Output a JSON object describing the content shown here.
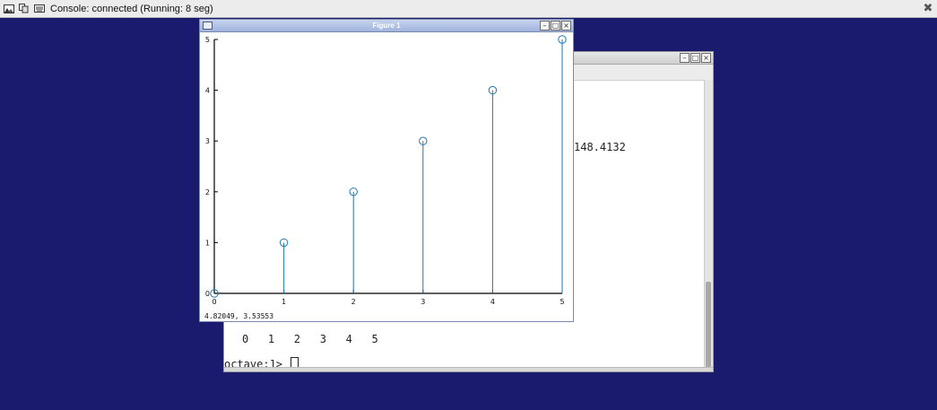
{
  "console": {
    "title": "Console: connected (Running: 8 seg)",
    "icons": [
      "picture-icon",
      "copy-icon",
      "keyboard-icon"
    ],
    "close_icon": "close-icon"
  },
  "terminal": {
    "output_value": "148.4132",
    "output_row": "0   1   2   3   4   5",
    "prompt": "octave:1> "
  },
  "figure": {
    "title": "Figure 1",
    "status": "4.82049,  3.53553"
  },
  "chart_data": {
    "type": "stem",
    "x": [
      0,
      1,
      2,
      3,
      4,
      5
    ],
    "y": [
      0,
      1,
      2,
      3,
      4,
      5
    ],
    "xlim": [
      0,
      5
    ],
    "ylim": [
      0,
      5
    ],
    "xticks": [
      "0",
      "1",
      "2",
      "3",
      "4",
      "5"
    ],
    "yticks": [
      "0",
      "1",
      "2",
      "3",
      "4",
      "5"
    ],
    "marker": "circle",
    "color": "#1f77b4",
    "grid": false,
    "title": "",
    "xlabel": "",
    "ylabel": ""
  }
}
